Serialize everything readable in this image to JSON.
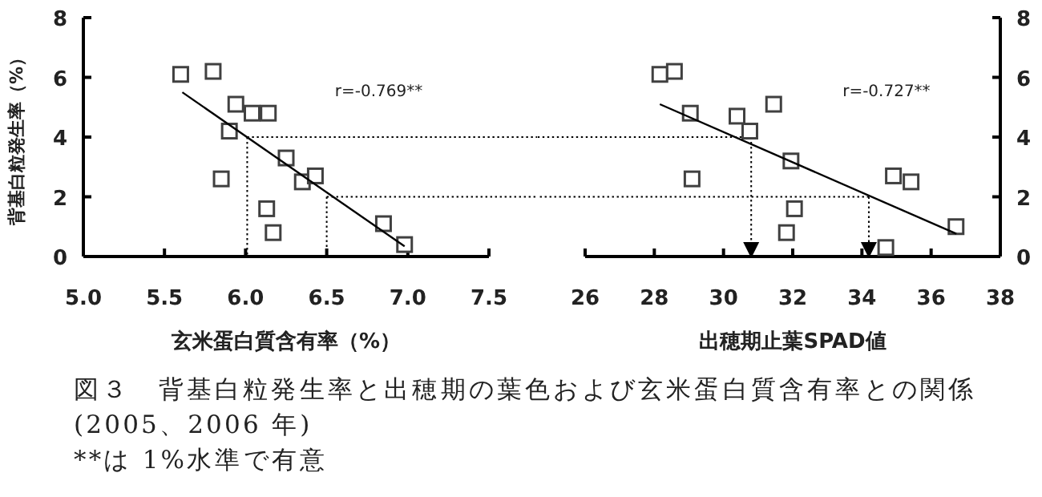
{
  "chart_data": [
    {
      "type": "scatter",
      "xlabel": "玄米蛋白質含有率（%）",
      "ylabel": "背基白粒発生率（%）",
      "xlim": [
        5,
        7.5
      ],
      "xticks": [
        {
          "value": 5,
          "label": "5.0"
        },
        {
          "value": 5.5,
          "label": "5.5"
        },
        {
          "value": 6,
          "label": "6.0"
        },
        {
          "value": 6.5,
          "label": "6.5"
        },
        {
          "value": 7,
          "label": "7.0"
        },
        {
          "value": 7.5,
          "label": "7.5"
        }
      ],
      "ylim": [
        0,
        8
      ],
      "yticks": [
        0,
        2,
        4,
        6,
        8
      ],
      "series": [
        {
          "marker": "square",
          "color": "#404040",
          "x": [
            5.6,
            5.8,
            5.94,
            6.04,
            6.14,
            5.9,
            5.85,
            6.25,
            6.35,
            6.43,
            6.13,
            6.17,
            6.85,
            6.98
          ],
          "values": [
            6.1,
            6.2,
            5.1,
            4.8,
            4.8,
            4.2,
            2.6,
            3.3,
            2.5,
            2.7,
            1.6,
            0.8,
            1.1,
            0.4
          ]
        },
        {
          "type": "line",
          "color": "#000000",
          "x": [
            5.61,
            6.98
          ],
          "values": [
            5.5,
            0.34
          ]
        }
      ],
      "ref_lines": [
        {
          "axis": "y",
          "value": 4,
          "line_style": "dotted"
        },
        {
          "axis": "y",
          "value": 2,
          "line_style": "dotted"
        },
        {
          "axis": "x",
          "value": 6.01,
          "line_style": "dotted"
        },
        {
          "axis": "x",
          "value": 6.5,
          "line_style": "dotted"
        }
      ],
      "annotations": [
        "r=-0.769**",
        "図３　背基白粒発生率と出穂期の葉色および玄米蛋白質含有率との関係(2005、2006 年)",
        "**は 1%水準で有意"
      ]
    },
    {
      "type": "scatter",
      "xlabel": "出穂期止葉SPAD値",
      "xlim": [
        26,
        38
      ],
      "xticks": [
        26,
        28,
        30,
        32,
        34,
        36,
        38
      ],
      "y2lim": [
        0,
        8
      ],
      "y2ticks": [
        0,
        2,
        4,
        6,
        8
      ],
      "series": [
        {
          "marker": "square",
          "axis": "y2",
          "color": "#404040",
          "x": [
            28.16,
            28.58,
            29.04,
            30.39,
            30.76,
            31.45,
            29.09,
            31.95,
            32.05,
            31.82,
            34.91,
            35.42,
            34.69,
            36.72
          ],
          "values": [
            6.1,
            6.2,
            4.8,
            4.7,
            4.2,
            5.1,
            2.6,
            3.2,
            1.6,
            0.8,
            2.7,
            2.5,
            0.3,
            1.0
          ]
        },
        {
          "type": "line",
          "axis": "y2",
          "color": "#000000",
          "x": [
            28.16,
            36.73
          ],
          "values": [
            5.1,
            0.76
          ]
        }
      ],
      "ref_lines": [
        {
          "axis": "y2",
          "value": 4,
          "line_style": "dotted"
        },
        {
          "axis": "y2",
          "value": 2,
          "line_style": "dotted"
        },
        {
          "axis": "x",
          "value": 30.8,
          "line_style": "dotted"
        },
        {
          "axis": "x",
          "value": 34.2,
          "line_style": "dotted"
        }
      ],
      "annotations": [
        "r=-0.727**"
      ]
    }
  ]
}
